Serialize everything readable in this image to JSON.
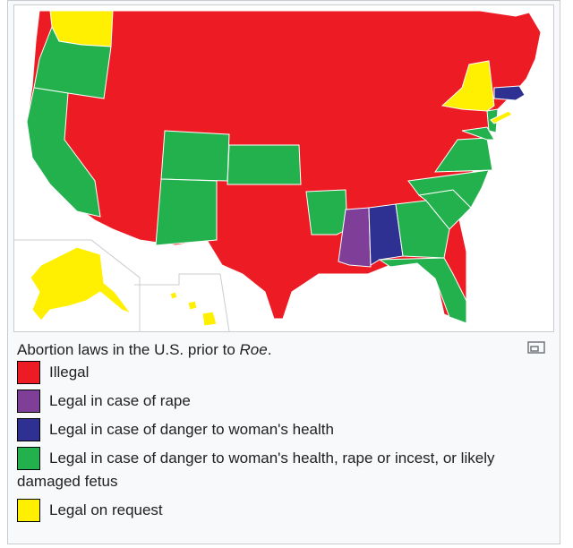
{
  "caption": {
    "prefix": "Abortion laws in the U.S. prior to ",
    "emphasis": "Roe",
    "suffix": "."
  },
  "legend": [
    {
      "key": "illegal",
      "label": "Illegal",
      "color": "#ed1c24"
    },
    {
      "key": "rape",
      "label": "Legal in case of rape",
      "color": "#7f3f98"
    },
    {
      "key": "health",
      "label": "Legal in case of danger to woman's health",
      "color": "#2e3192"
    },
    {
      "key": "health_rape_incest_fetus",
      "label": "Legal in case of danger to woman's health, rape or incest, or likely damaged fetus",
      "color": "#22b14c"
    },
    {
      "key": "request",
      "label": "Legal on request",
      "color": "#ffef00"
    }
  ],
  "icons": {
    "enlarge": "magnify-icon"
  }
}
